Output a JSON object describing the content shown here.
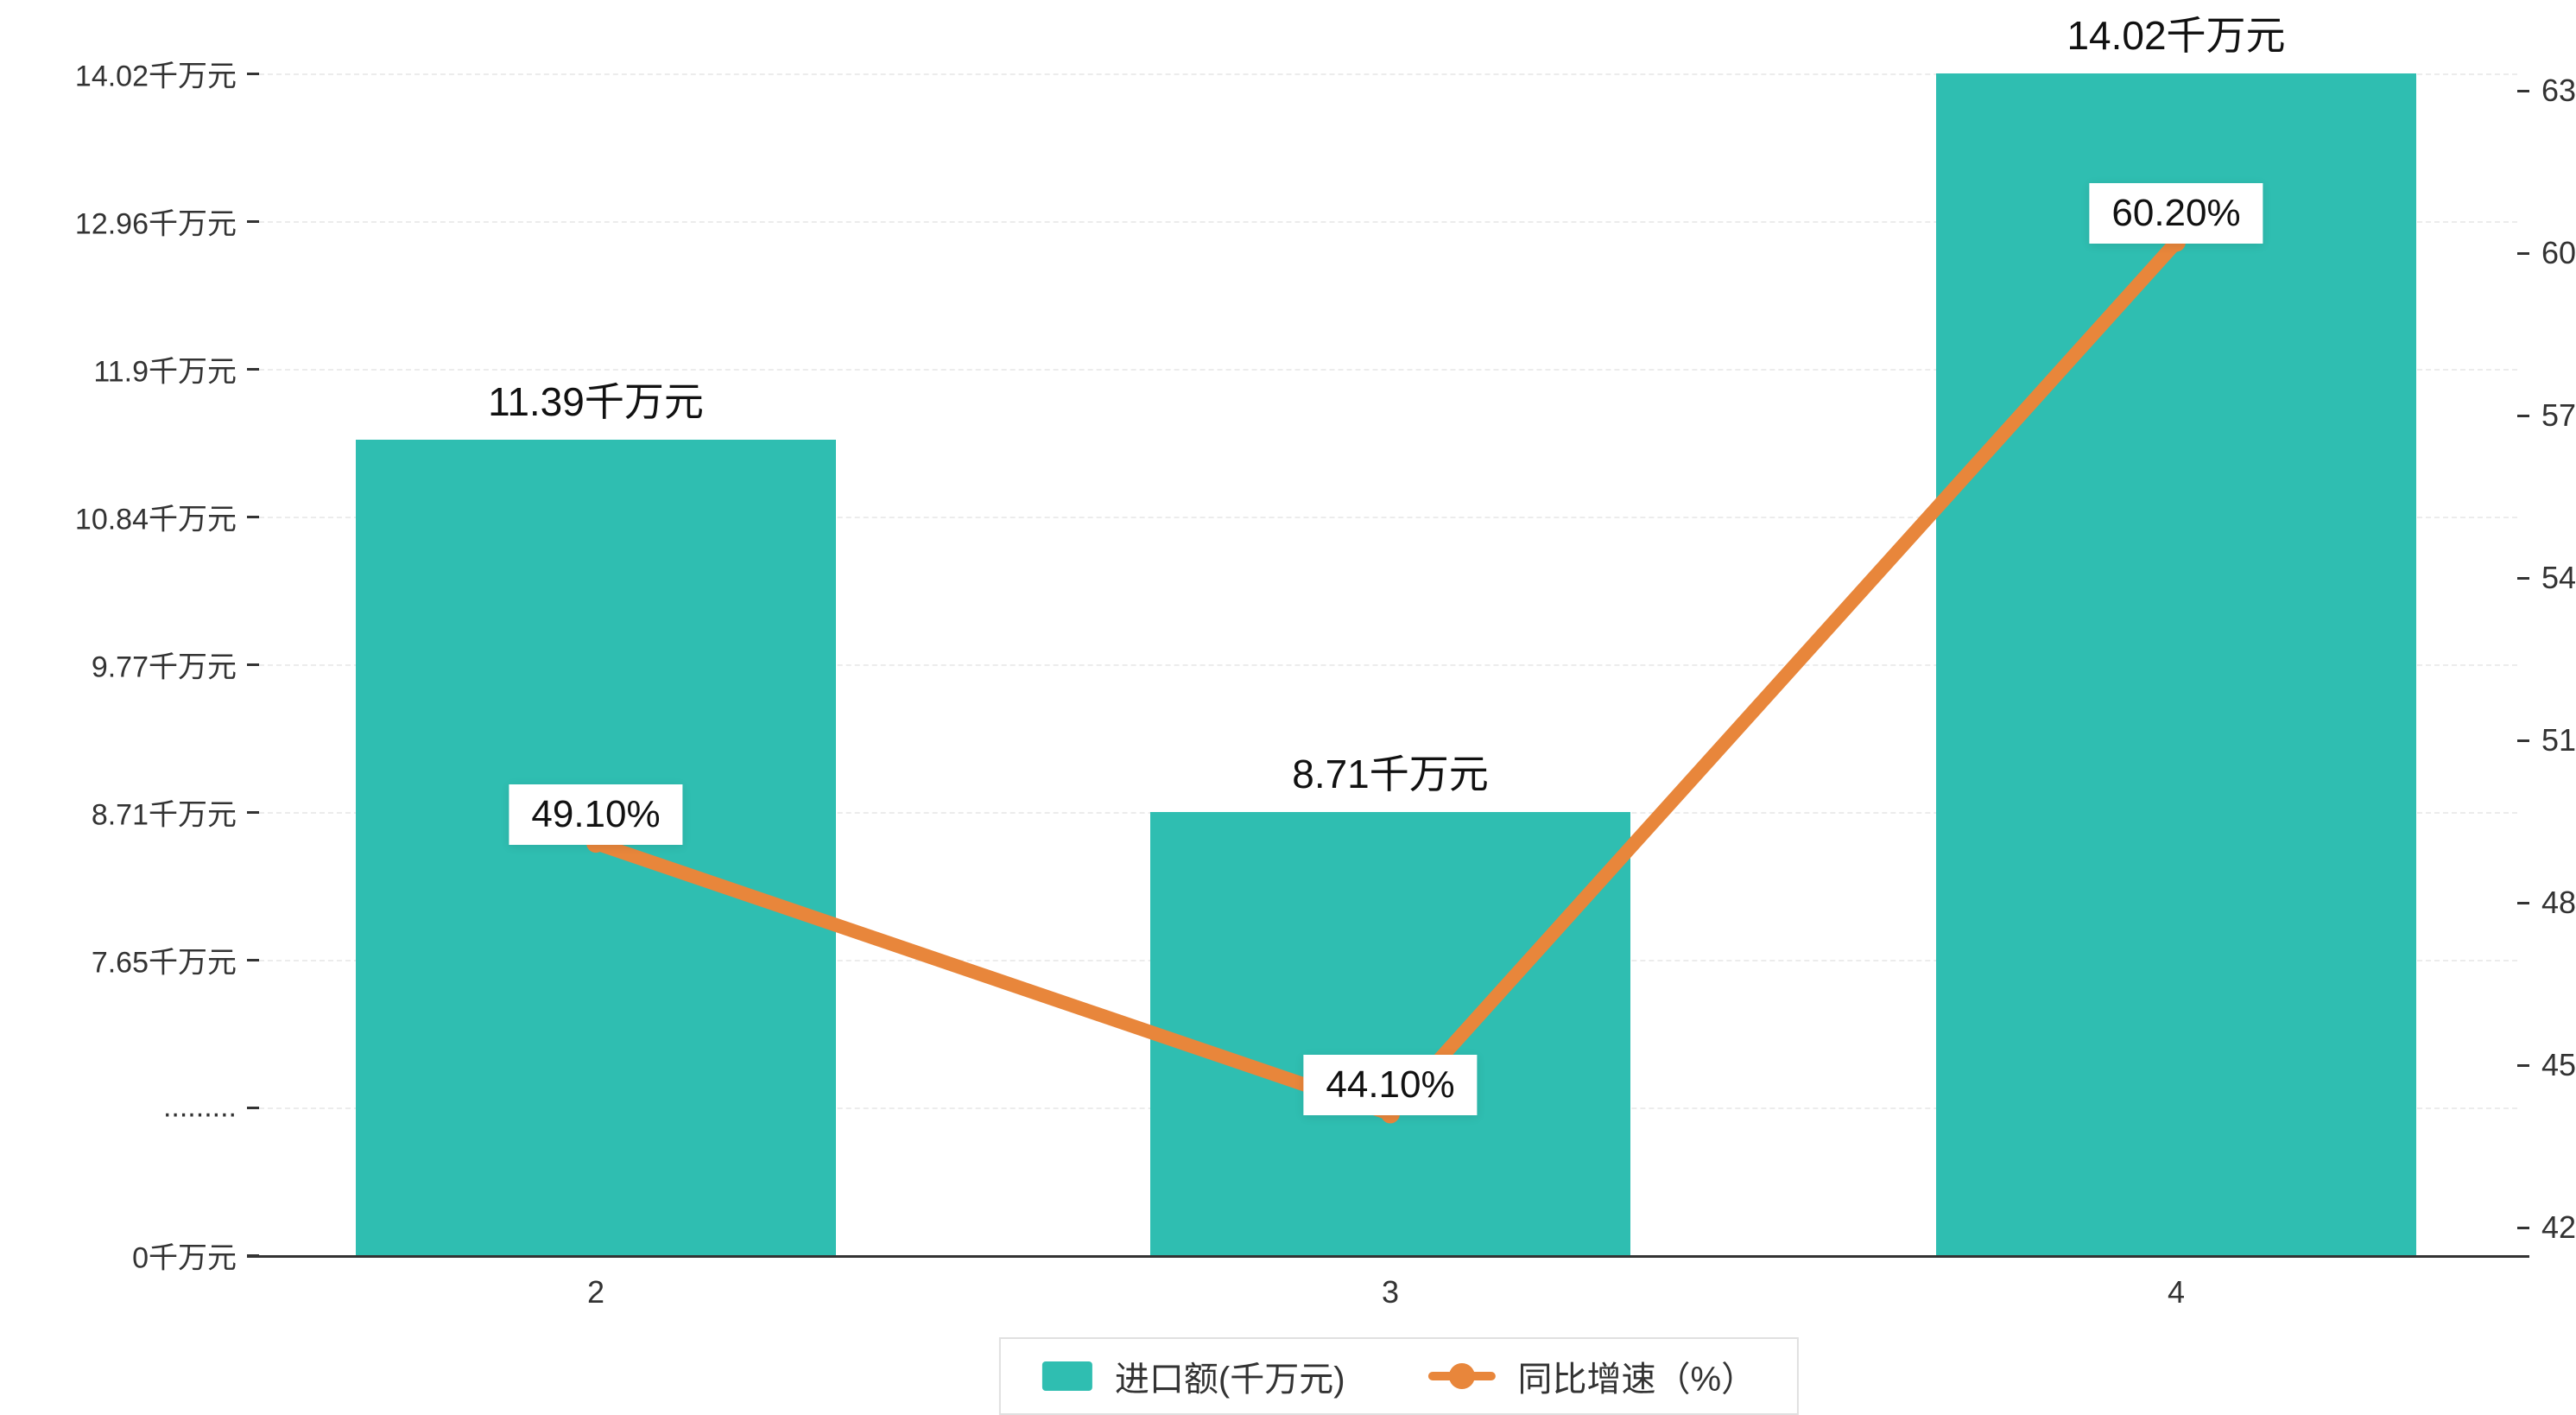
{
  "chart_data": {
    "type": "bar+line",
    "title": "",
    "categories": [
      "2",
      "3",
      "4"
    ],
    "series": [
      {
        "name": "进口额(千万元)",
        "type": "bar",
        "values": [
          11.39,
          8.71,
          14.02
        ],
        "labels": [
          "11.39千万元",
          "8.71千万元",
          "14.02千万元"
        ],
        "color": "#2fbeb1"
      },
      {
        "name": "同比增速（%）",
        "type": "line",
        "values": [
          49.1,
          44.1,
          60.2
        ],
        "labels": [
          "49.10%",
          "44.10%",
          "60.20%"
        ],
        "color": "#e8863b"
      }
    ],
    "left_axis": {
      "tick_labels": [
        "14.02千万元",
        "12.96千万元",
        "11.9千万元",
        "10.84千万元",
        "9.77千万元",
        "8.71千万元",
        "7.65千万元",
        ".........",
        "0千万元"
      ],
      "top_value": 14.02,
      "value_per_tick": 1.0617,
      "has_break": true,
      "min_label": "0千万元"
    },
    "right_axis": {
      "ticks": [
        63,
        60,
        57,
        54,
        51,
        48,
        45,
        42
      ],
      "max": 63,
      "min": 42,
      "step": 3
    },
    "legend": [
      {
        "label": "进口额(千万元)",
        "type": "bar",
        "color": "#2fbeb1"
      },
      {
        "label": "同比增速（%）",
        "type": "line",
        "color": "#e8863b"
      }
    ],
    "grid": "horizontal-dashed"
  }
}
